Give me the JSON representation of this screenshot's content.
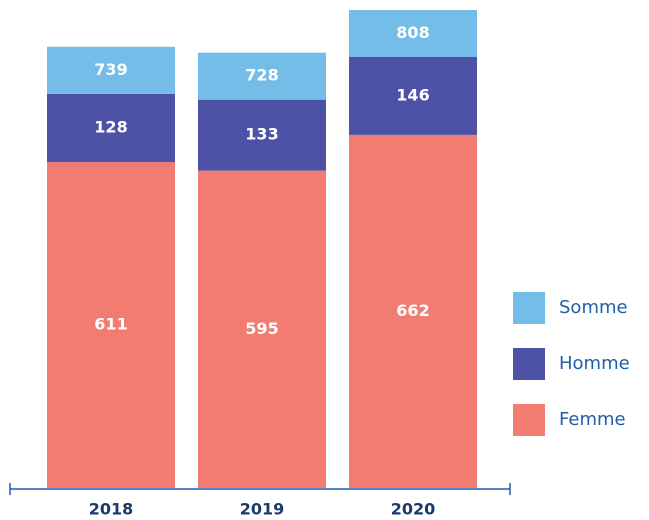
{
  "chart_data": {
    "type": "bar",
    "stacked": true,
    "categories": [
      "2018",
      "2019",
      "2020"
    ],
    "series": [
      {
        "name": "Femme",
        "color": "#f27b72",
        "values": [
          611,
          595,
          662
        ]
      },
      {
        "name": "Homme",
        "color": "#4e52a6",
        "values": [
          128,
          133,
          146
        ]
      },
      {
        "name": "Somme",
        "color": "#74bde8",
        "values": [
          739,
          728,
          808
        ]
      }
    ]
  }
}
